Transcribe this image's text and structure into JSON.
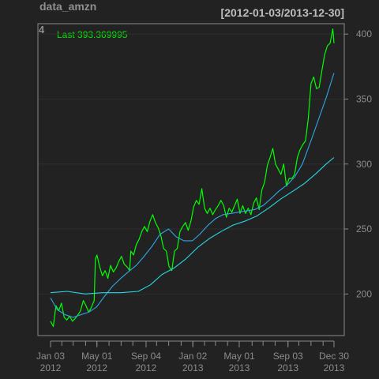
{
  "chart_data": {
    "type": "line",
    "title": "data_amzn",
    "date_range": "[2012-01-03/2013-12-30]",
    "corner_label": "4",
    "last_label": "Last 393.369995",
    "ylim": [
      168,
      408
    ],
    "x_range": [
      "2012-01-03",
      "2013-12-30"
    ],
    "y_ticks": [
      200,
      250,
      300,
      350,
      400
    ],
    "x_ticks": [
      {
        "date": "2012-01-03",
        "line1": "Jan 03",
        "line2": "2012"
      },
      {
        "date": "2012-05-01",
        "line1": "May 01",
        "line2": "2012"
      },
      {
        "date": "2012-09-04",
        "line1": "Sep 04",
        "line2": "2012"
      },
      {
        "date": "2013-01-02",
        "line1": "Jan 02",
        "line2": "2013"
      },
      {
        "date": "2013-05-01",
        "line1": "May 01",
        "line2": "2013"
      },
      {
        "date": "2013-09-03",
        "line1": "Sep 03",
        "line2": "2013"
      },
      {
        "date": "2013-12-30",
        "line1": "Dec 30",
        "line2": "2013"
      }
    ],
    "minor_tick_dates": [
      "2012-01-03",
      "2012-02-01",
      "2012-03-01",
      "2012-04-02",
      "2012-05-01",
      "2012-06-01",
      "2012-07-02",
      "2012-08-01",
      "2012-09-04",
      "2012-10-01",
      "2012-11-01",
      "2012-12-03",
      "2013-01-02",
      "2013-02-01",
      "2013-03-01",
      "2013-04-01",
      "2013-05-01",
      "2013-06-03",
      "2013-07-01",
      "2013-08-01",
      "2013-09-03",
      "2013-10-01",
      "2013-11-01",
      "2013-12-02",
      "2013-12-30"
    ],
    "grid": true,
    "colors": {
      "price": "#00ff00",
      "ma_fast": "#2ea6e6",
      "ma_slow": "#27d7e6",
      "background": "#222222",
      "grid": "#2e2e2e",
      "axis": "#8a8a8a"
    },
    "series": [
      {
        "key": "price",
        "x": [
          "2012-01-03",
          "2012-01-10",
          "2012-01-17",
          "2012-01-24",
          "2012-01-31",
          "2012-02-07",
          "2012-02-14",
          "2012-02-21",
          "2012-02-28",
          "2012-03-06",
          "2012-03-13",
          "2012-03-20",
          "2012-03-27",
          "2012-04-03",
          "2012-04-10",
          "2012-04-17",
          "2012-04-24",
          "2012-04-27",
          "2012-05-01",
          "2012-05-08",
          "2012-05-15",
          "2012-05-22",
          "2012-05-29",
          "2012-06-05",
          "2012-06-12",
          "2012-06-19",
          "2012-06-26",
          "2012-07-03",
          "2012-07-10",
          "2012-07-17",
          "2012-07-24",
          "2012-07-27",
          "2012-08-03",
          "2012-08-10",
          "2012-08-17",
          "2012-08-24",
          "2012-08-31",
          "2012-09-07",
          "2012-09-14",
          "2012-09-21",
          "2012-09-28",
          "2012-10-05",
          "2012-10-12",
          "2012-10-19",
          "2012-10-26",
          "2012-11-02",
          "2012-11-09",
          "2012-11-16",
          "2012-11-23",
          "2012-11-30",
          "2012-12-07",
          "2012-12-14",
          "2012-12-21",
          "2012-12-28",
          "2013-01-04",
          "2013-01-11",
          "2013-01-18",
          "2013-01-25",
          "2013-02-01",
          "2013-02-08",
          "2013-02-15",
          "2013-02-22",
          "2013-03-01",
          "2013-03-08",
          "2013-03-15",
          "2013-03-22",
          "2013-03-29",
          "2013-04-05",
          "2013-04-12",
          "2013-04-19",
          "2013-04-26",
          "2013-05-03",
          "2013-05-10",
          "2013-05-17",
          "2013-05-24",
          "2013-05-31",
          "2013-06-07",
          "2013-06-14",
          "2013-06-21",
          "2013-06-28",
          "2013-07-05",
          "2013-07-12",
          "2013-07-19",
          "2013-07-26",
          "2013-08-02",
          "2013-08-09",
          "2013-08-16",
          "2013-08-23",
          "2013-08-30",
          "2013-09-06",
          "2013-09-13",
          "2013-09-20",
          "2013-09-27",
          "2013-10-04",
          "2013-10-11",
          "2013-10-18",
          "2013-10-25",
          "2013-11-01",
          "2013-11-08",
          "2013-11-15",
          "2013-11-22",
          "2013-11-29",
          "2013-12-06",
          "2013-12-13",
          "2013-12-20",
          "2013-12-27",
          "2013-12-30"
        ],
        "y": [
          179,
          175,
          191,
          187,
          193,
          182,
          180,
          183,
          179,
          181,
          184,
          187,
          195,
          191,
          186,
          190,
          195,
          227,
          230,
          221,
          214,
          218,
          212,
          222,
          217,
          220,
          225,
          229,
          223,
          221,
          218,
          233,
          230,
          238,
          242,
          248,
          252,
          248,
          256,
          261,
          255,
          251,
          245,
          235,
          233,
          221,
          218,
          233,
          235,
          248,
          252,
          255,
          249,
          256,
          267,
          272,
          269,
          281,
          266,
          262,
          266,
          261,
          265,
          268,
          272,
          268,
          259,
          266,
          263,
          268,
          273,
          262,
          268,
          262,
          266,
          261,
          270,
          274,
          265,
          280,
          286,
          299,
          305,
          312,
          300,
          296,
          292,
          300,
          283,
          289,
          289,
          292,
          305,
          311,
          315,
          318,
          335,
          362,
          367,
          358,
          359,
          372,
          384,
          391,
          393,
          404,
          393
        ]
      },
      {
        "key": "ma_fast",
        "x": [
          "2012-01-03",
          "2012-01-20",
          "2012-02-10",
          "2012-03-01",
          "2012-03-20",
          "2012-04-10",
          "2012-04-30",
          "2012-05-20",
          "2012-06-10",
          "2012-07-01",
          "2012-07-20",
          "2012-08-10",
          "2012-08-30",
          "2012-09-20",
          "2012-10-10",
          "2012-11-01",
          "2012-11-20",
          "2012-12-10",
          "2013-01-01",
          "2013-01-20",
          "2013-02-10",
          "2013-03-01",
          "2013-03-20",
          "2013-04-10",
          "2013-05-01",
          "2013-05-20",
          "2013-06-10",
          "2013-07-01",
          "2013-07-20",
          "2013-08-10",
          "2013-09-01",
          "2013-09-20",
          "2013-10-10",
          "2013-11-01",
          "2013-11-20",
          "2013-12-10",
          "2013-12-30"
        ],
        "y": [
          197,
          188,
          184,
          182,
          184,
          186,
          190,
          198,
          206,
          212,
          217,
          222,
          229,
          237,
          246,
          250,
          244,
          241,
          241,
          246,
          253,
          258,
          261,
          262,
          263,
          264,
          265,
          268,
          273,
          279,
          284,
          290,
          300,
          318,
          334,
          351,
          370
        ]
      },
      {
        "key": "ma_slow",
        "x": [
          "2012-01-03",
          "2012-02-15",
          "2012-04-01",
          "2012-05-15",
          "2012-07-01",
          "2012-08-15",
          "2012-09-15",
          "2012-10-15",
          "2012-11-15",
          "2012-12-15",
          "2013-01-15",
          "2013-02-15",
          "2013-03-15",
          "2013-04-15",
          "2013-05-15",
          "2013-06-15",
          "2013-07-15",
          "2013-08-15",
          "2013-09-15",
          "2013-10-15",
          "2013-11-15",
          "2013-12-10",
          "2013-12-30"
        ],
        "y": [
          201,
          202,
          200,
          201,
          201,
          202,
          207,
          215,
          220,
          227,
          236,
          243,
          248,
          253,
          256,
          260,
          266,
          273,
          279,
          285,
          293,
          300,
          305
        ]
      }
    ]
  }
}
